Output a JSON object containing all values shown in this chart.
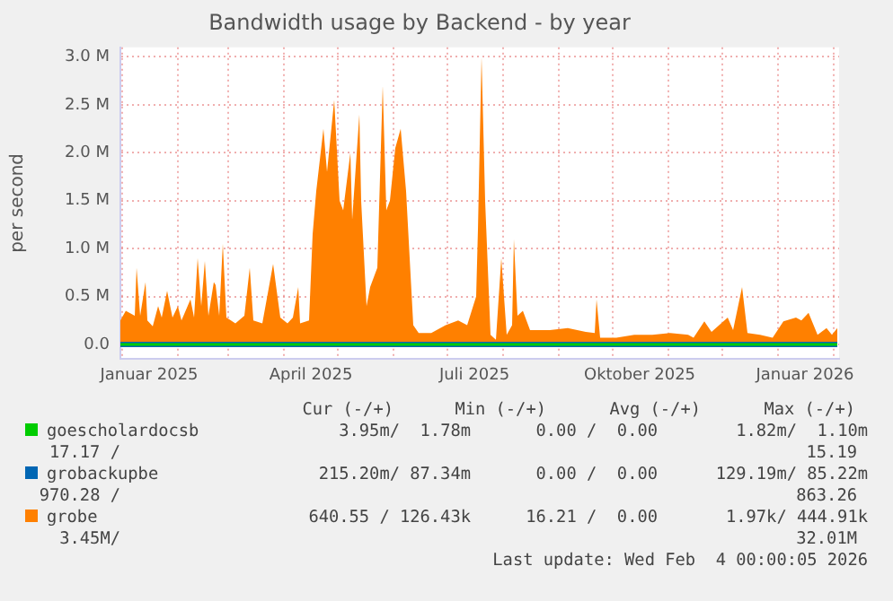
{
  "chart_data": {
    "type": "area",
    "title": "Bandwidth usage by Backend - by year",
    "ylabel": "per second",
    "x": [
      "2024-12-31",
      "2025-01-03",
      "2025-01-08",
      "2025-01-09",
      "2025-01-11",
      "2025-01-14",
      "2025-01-15",
      "2025-01-18",
      "2025-01-21",
      "2025-01-23",
      "2025-01-26",
      "2025-01-29",
      "2025-02-01",
      "2025-02-03",
      "2025-02-08",
      "2025-02-10",
      "2025-02-12",
      "2025-02-14",
      "2025-02-16",
      "2025-02-18",
      "2025-02-21",
      "2025-02-22",
      "2025-02-24",
      "2025-02-26",
      "2025-02-28",
      "2025-03-05",
      "2025-03-10",
      "2025-03-13",
      "2025-03-15",
      "2025-03-20",
      "2025-03-26",
      "2025-03-30",
      "2025-04-03",
      "2025-04-06",
      "2025-04-09",
      "2025-04-10",
      "2025-04-15",
      "2025-04-17",
      "2025-04-19",
      "2025-04-23",
      "2025-04-25",
      "2025-04-29",
      "2025-05-02",
      "2025-05-04",
      "2025-05-08",
      "2025-05-09",
      "2025-05-13",
      "2025-05-14",
      "2025-05-17",
      "2025-05-19",
      "2025-05-23",
      "2025-05-26",
      "2025-05-28",
      "2025-05-30",
      "2025-06-02",
      "2025-06-05",
      "2025-06-08",
      "2025-06-12",
      "2025-06-15",
      "2025-06-22",
      "2025-06-30",
      "2025-07-07",
      "2025-07-12",
      "2025-07-17",
      "2025-07-18",
      "2025-07-20",
      "2025-07-22",
      "2025-07-25",
      "2025-07-28",
      "2025-07-31",
      "2025-08-03",
      "2025-08-06",
      "2025-08-07",
      "2025-08-09",
      "2025-08-12",
      "2025-08-16",
      "2025-08-21",
      "2025-08-27",
      "2025-09-06",
      "2025-09-16",
      "2025-09-21",
      "2025-09-22",
      "2025-09-24",
      "2025-10-03",
      "2025-10-13",
      "2025-10-23",
      "2025-11-02",
      "2025-11-12",
      "2025-11-15",
      "2025-11-21",
      "2025-11-25",
      "2025-12-04",
      "2025-12-07",
      "2025-12-12",
      "2025-12-15",
      "2025-12-22",
      "2025-12-29",
      "2026-01-04",
      "2026-01-11",
      "2026-01-14",
      "2026-01-18",
      "2026-01-23",
      "2026-01-28",
      "2026-01-31",
      "2026-02-03"
    ],
    "series": [
      {
        "name": "goescholardocsb",
        "color": "#00cc00",
        "type": "line",
        "x": [
          "2024-12-31",
          "2026-02-03"
        ],
        "values": [
          0,
          0
        ]
      },
      {
        "name": "grobackupbe",
        "color": "#0066b3",
        "type": "line",
        "x": [
          "2024-12-31",
          "2026-02-03"
        ],
        "values": [
          0,
          0
        ]
      },
      {
        "name": "grobe",
        "color": "#ff8000",
        "values": [
          0.25,
          0.35,
          0.3,
          0.8,
          0.3,
          0.65,
          0.25,
          0.19,
          0.4,
          0.28,
          0.56,
          0.28,
          0.4,
          0.25,
          0.47,
          0.28,
          0.9,
          0.4,
          0.87,
          0.3,
          0.65,
          0.62,
          0.3,
          1.05,
          0.28,
          0.22,
          0.3,
          0.8,
          0.25,
          0.22,
          0.84,
          0.28,
          0.22,
          0.28,
          0.6,
          0.22,
          0.25,
          1.15,
          1.6,
          2.25,
          1.8,
          2.55,
          1.5,
          1.4,
          2.0,
          1.3,
          2.4,
          1.5,
          0.4,
          0.6,
          0.8,
          2.7,
          1.4,
          1.5,
          2.05,
          2.25,
          1.6,
          0.2,
          0.12,
          0.12,
          0.2,
          0.25,
          0.2,
          0.5,
          1.2,
          3.0,
          1.5,
          0.1,
          0.05,
          0.9,
          0.1,
          0.2,
          1.1,
          0.3,
          0.35,
          0.15,
          0.15,
          0.15,
          0.17,
          0.13,
          0.12,
          0.47,
          0.07,
          0.07,
          0.1,
          0.1,
          0.12,
          0.1,
          0.07,
          0.24,
          0.13,
          0.28,
          0.15,
          0.6,
          0.12,
          0.1,
          0.07,
          0.24,
          0.28,
          0.25,
          0.33,
          0.1,
          0.17,
          0.1,
          0.17
        ]
      }
    ],
    "xlim": [
      "2024-12-31",
      "2026-02-04"
    ],
    "xticks": [
      {
        "value": "2025-01-01",
        "label": null
      },
      {
        "value": "2025-01-16",
        "label": "Januar 2025"
      },
      {
        "value": "2025-02-01",
        "label": null
      },
      {
        "value": "2025-03-01",
        "label": null
      },
      {
        "value": "2025-04-01",
        "label": null
      },
      {
        "value": "2025-04-16",
        "label": "April 2025"
      },
      {
        "value": "2025-05-01",
        "label": null
      },
      {
        "value": "2025-06-01",
        "label": null
      },
      {
        "value": "2025-07-01",
        "label": null
      },
      {
        "value": "2025-07-16",
        "label": "Juli 2025"
      },
      {
        "value": "2025-08-01",
        "label": null
      },
      {
        "value": "2025-09-01",
        "label": null
      },
      {
        "value": "2025-10-01",
        "label": null
      },
      {
        "value": "2025-10-16",
        "label": "Oktober 2025"
      },
      {
        "value": "2025-11-01",
        "label": null
      },
      {
        "value": "2025-12-01",
        "label": null
      },
      {
        "value": "2026-01-01",
        "label": null
      },
      {
        "value": "2026-01-16",
        "label": "Januar 2026"
      },
      {
        "value": "2026-02-01",
        "label": null
      }
    ],
    "ylim": [
      -0.15,
      3.1
    ],
    "yticks": [
      {
        "value": 0,
        "label": "0.0"
      },
      {
        "value": 0.5,
        "label": "0.5 M"
      },
      {
        "value": 1,
        "label": "1.0 M"
      },
      {
        "value": 1.5,
        "label": "1.5 M"
      },
      {
        "value": 2,
        "label": "2.0 M"
      },
      {
        "value": 2.5,
        "label": "2.5 M"
      },
      {
        "value": 3,
        "label": "3.0 M"
      }
    ],
    "grid": true,
    "legend": "bottom",
    "annotations": [
      "Cur (-/+)",
      "Min (-/+)",
      "Avg (-/+)",
      "Max (-/+)",
      "3.95m/  1.78m",
      "0.00 /  0.00",
      "1.82m/  1.10m",
      "17.17 /",
      "15.19",
      "215.20m/ 87.34m",
      "0.00 /  0.00",
      "129.19m/ 85.22m",
      "970.28 /",
      "863.26",
      "640.55 / 126.43k",
      "16.21 /  0.00",
      "1.97k/ 444.91k",
      "3.45M/",
      "32.01M",
      "Last update: Wed Feb  4 00:00:05 2026"
    ]
  }
}
